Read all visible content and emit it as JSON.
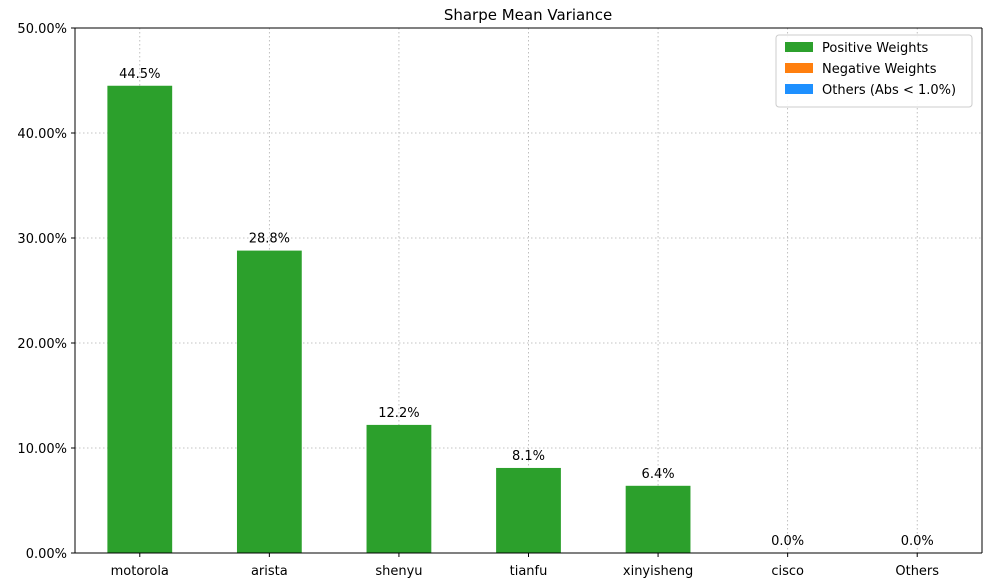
{
  "chart_data": {
    "type": "bar",
    "title": "Sharpe Mean Variance",
    "xlabel": "",
    "ylabel": "",
    "categories": [
      "motorola",
      "arista",
      "shenyu",
      "tianfu",
      "xinyisheng",
      "cisco",
      "Others"
    ],
    "series": [
      {
        "name": "Positive Weights",
        "color": "#2ca02c",
        "values": [
          44.5,
          28.8,
          12.2,
          8.1,
          6.4,
          0.0,
          0.0
        ]
      },
      {
        "name": "Negative Weights",
        "color": "#ff7f0e",
        "values": [
          0,
          0,
          0,
          0,
          0,
          0,
          0
        ]
      },
      {
        "name": "Others (Abs < 1.0%)",
        "color": "#1e90ff",
        "values": [
          0,
          0,
          0,
          0,
          0,
          0,
          0
        ]
      }
    ],
    "data_labels": [
      "44.5%",
      "28.8%",
      "12.2%",
      "8.1%",
      "6.4%",
      "0.0%",
      "0.0%"
    ],
    "ylim": [
      0,
      50
    ],
    "yticks": [
      "0.00%",
      "10.00%",
      "20.00%",
      "30.00%",
      "40.00%",
      "50.00%"
    ],
    "ytick_values": [
      0,
      10,
      20,
      30,
      40,
      50
    ],
    "grid": true,
    "legend_position": "top-right"
  }
}
